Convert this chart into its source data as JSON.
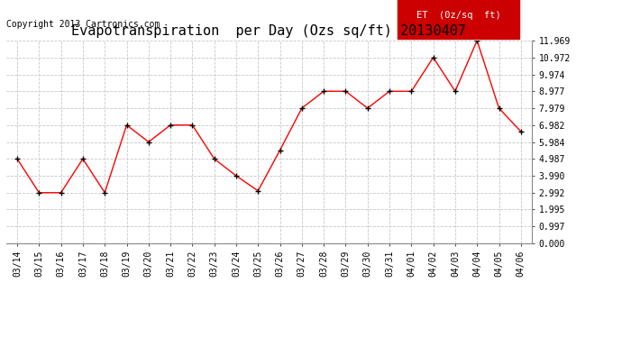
{
  "title": "Evapotranspiration  per Day (Ozs sq/ft) 20130407",
  "copyright": "Copyright 2013 Cartronics.com",
  "legend_label": "ET  (0z/sq  ft)",
  "x_labels": [
    "03/14",
    "03/15",
    "03/16",
    "03/17",
    "03/18",
    "03/19",
    "03/20",
    "03/21",
    "03/22",
    "03/23",
    "03/24",
    "03/25",
    "03/26",
    "03/27",
    "03/28",
    "03/29",
    "03/30",
    "03/31",
    "04/01",
    "04/02",
    "04/03",
    "04/04",
    "04/05",
    "04/06"
  ],
  "y_values": [
    4.987,
    2.992,
    2.992,
    4.987,
    2.992,
    6.982,
    5.984,
    6.982,
    6.982,
    4.987,
    3.99,
    3.1,
    5.5,
    7.979,
    8.977,
    8.977,
    7.979,
    8.977,
    8.977,
    10.972,
    8.977,
    11.969,
    7.979,
    6.6
  ],
  "yticks": [
    0.0,
    0.997,
    1.995,
    2.992,
    3.99,
    4.987,
    5.984,
    6.982,
    7.979,
    8.977,
    9.974,
    10.972,
    11.969
  ],
  "ymin": 0.0,
  "ymax": 11.969,
  "line_color": "red",
  "marker_color": "black",
  "bg_color": "#ffffff",
  "grid_color": "#c8c8c8",
  "legend_bg": "#cc0000",
  "legend_text_color": "white",
  "title_fontsize": 11,
  "copyright_fontsize": 7,
  "tick_fontsize": 7
}
